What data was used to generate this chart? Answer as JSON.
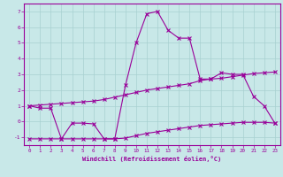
{
  "background_color": "#c8e8e8",
  "grid_color": "#a8d0d0",
  "line_color": "#990099",
  "x_label": "Windchill (Refroidissement éolien,°C)",
  "ylim": [
    -1.5,
    7.5
  ],
  "xlim": [
    -0.5,
    23.5
  ],
  "yticks": [
    -1,
    0,
    1,
    2,
    3,
    4,
    5,
    6,
    7
  ],
  "xticks": [
    0,
    1,
    2,
    3,
    4,
    5,
    6,
    7,
    8,
    9,
    10,
    11,
    12,
    13,
    14,
    15,
    16,
    17,
    18,
    19,
    20,
    21,
    22,
    23
  ],
  "line1_x": [
    0,
    1,
    2,
    3,
    4,
    5,
    6,
    7,
    8,
    9,
    10,
    11,
    12,
    13,
    14,
    15,
    16,
    17,
    18,
    19,
    20,
    21,
    22,
    23
  ],
  "line1_y": [
    1.0,
    0.85,
    0.85,
    -1.1,
    -0.1,
    -0.1,
    -0.15,
    -1.1,
    -1.1,
    2.3,
    5.0,
    6.85,
    7.0,
    5.8,
    5.3,
    5.3,
    2.7,
    2.7,
    3.1,
    3.0,
    3.0,
    1.6,
    1.0,
    -0.1
  ],
  "line2_x": [
    0,
    1,
    2,
    3,
    4,
    5,
    6,
    7,
    8,
    9,
    10,
    11,
    12,
    13,
    14,
    15,
    16,
    17,
    18,
    19,
    20,
    21,
    22,
    23
  ],
  "line2_y": [
    1.0,
    1.05,
    1.1,
    1.15,
    1.2,
    1.25,
    1.3,
    1.4,
    1.55,
    1.7,
    1.85,
    2.0,
    2.1,
    2.2,
    2.3,
    2.4,
    2.6,
    2.7,
    2.75,
    2.85,
    2.95,
    3.05,
    3.1,
    3.15
  ],
  "line3_x": [
    0,
    1,
    2,
    3,
    4,
    5,
    6,
    7,
    8,
    9,
    10,
    11,
    12,
    13,
    14,
    15,
    16,
    17,
    18,
    19,
    20,
    21,
    22,
    23
  ],
  "line3_y": [
    -1.1,
    -1.1,
    -1.1,
    -1.1,
    -1.1,
    -1.1,
    -1.1,
    -1.1,
    -1.1,
    -1.05,
    -0.9,
    -0.75,
    -0.65,
    -0.55,
    -0.45,
    -0.35,
    -0.25,
    -0.2,
    -0.15,
    -0.1,
    -0.05,
    -0.05,
    -0.05,
    -0.1
  ]
}
